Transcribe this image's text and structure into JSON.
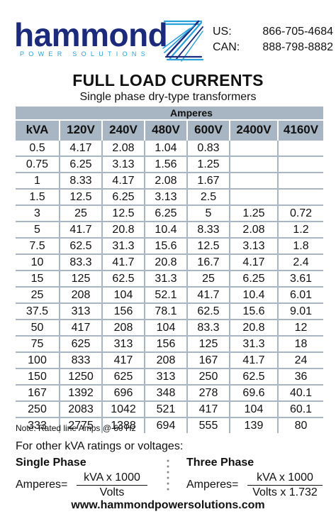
{
  "brand": {
    "name": "hammond",
    "tagline": "POWER SOLUTIONS",
    "colors": {
      "navy": "#1b2a7a",
      "blue": "#2a9fd8",
      "table_header": "#a8b6c3"
    }
  },
  "contact": {
    "us_label": "US:",
    "us_phone": "866-705-4684",
    "can_label": "CAN:",
    "can_phone": "888-798-8882"
  },
  "title": "FULL LOAD CURRENTS",
  "subtitle": "Single phase dry-type transformers",
  "table": {
    "group_header": "Amperes",
    "columns": [
      "kVA",
      "120V",
      "240V",
      "480V",
      "600V",
      "2400V",
      "4160V"
    ],
    "rows": [
      [
        "0.5",
        "4.17",
        "2.08",
        "1.04",
        "0.83",
        "",
        ""
      ],
      [
        "0.75",
        "6.25",
        "3.13",
        "1.56",
        "1.25",
        "",
        ""
      ],
      [
        "1",
        "8.33",
        "4.17",
        "2.08",
        "1.67",
        "",
        ""
      ],
      [
        "1.5",
        "12.5",
        "6.25",
        "3.13",
        "2.5",
        "",
        ""
      ],
      [
        "3",
        "25",
        "12.5",
        "6.25",
        "5",
        "1.25",
        "0.72"
      ],
      [
        "5",
        "41.7",
        "20.8",
        "10.4",
        "8.33",
        "2.08",
        "1.2"
      ],
      [
        "7.5",
        "62.5",
        "31.3",
        "15.6",
        "12.5",
        "3.13",
        "1.8"
      ],
      [
        "10",
        "83.3",
        "41.7",
        "20.8",
        "16.7",
        "4.17",
        "2.4"
      ],
      [
        "15",
        "125",
        "62.5",
        "31.3",
        "25",
        "6.25",
        "3.61"
      ],
      [
        "25",
        "208",
        "104",
        "52.1",
        "41.7",
        "10.4",
        "6.01"
      ],
      [
        "37.5",
        "313",
        "156",
        "78.1",
        "62.5",
        "15.6",
        "9.01"
      ],
      [
        "50",
        "417",
        "208",
        "104",
        "83.3",
        "20.8",
        "12"
      ],
      [
        "75",
        "625",
        "313",
        "156",
        "125",
        "31.3",
        "18"
      ],
      [
        "100",
        "833",
        "417",
        "208",
        "167",
        "41.7",
        "24"
      ],
      [
        "150",
        "1250",
        "625",
        "313",
        "250",
        "62.5",
        "36"
      ],
      [
        "167",
        "1392",
        "696",
        "348",
        "278",
        "69.6",
        "40.1"
      ],
      [
        "250",
        "2083",
        "1042",
        "521",
        "417",
        "104",
        "60.1"
      ],
      [
        "333",
        "2775",
        "1388",
        "694",
        "555",
        "139",
        "80"
      ]
    ]
  },
  "note": "Note: Rated line Amps @ 60 Hz",
  "other_ratings": "For other kVA ratings or voltages:",
  "single_phase": {
    "title": "Single Phase",
    "label": "Amperes=",
    "numerator": "kVA x 1000",
    "denominator": "Volts"
  },
  "three_phase": {
    "title": "Three Phase",
    "label": "Amperes=",
    "numerator": "kVA x 1000",
    "denominator": "Volts x 1.732"
  },
  "website": "www.hammondpowersolutions.com"
}
